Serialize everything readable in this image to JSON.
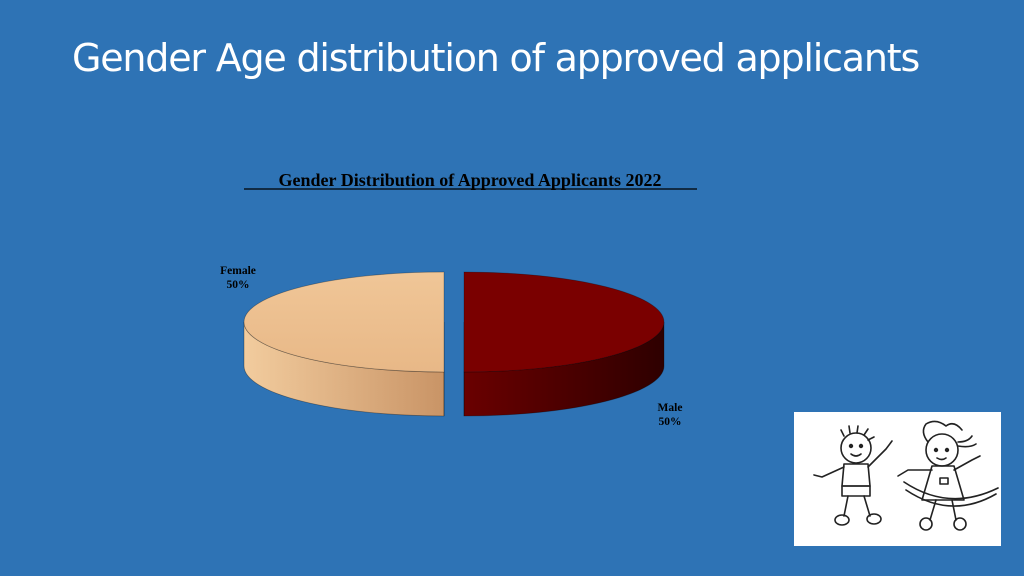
{
  "slide": {
    "title": "Gender Age distribution of approved applicants",
    "background": "#2e73b5"
  },
  "chart_data": {
    "type": "pie",
    "title": "Gender Distribution of Approved Applicants 2022",
    "three_d": true,
    "exploded": true,
    "slices": [
      {
        "label": "Female",
        "value": 50,
        "percent_label": "50%",
        "top_color": "#ecbe8e",
        "side_color": "#d9a372"
      },
      {
        "label": "Male",
        "value": 50,
        "percent_label": "50%",
        "top_color": "#7a0000",
        "side_color": "#4d0000"
      }
    ]
  },
  "illustration": {
    "icon": "children-playing-drawing"
  }
}
